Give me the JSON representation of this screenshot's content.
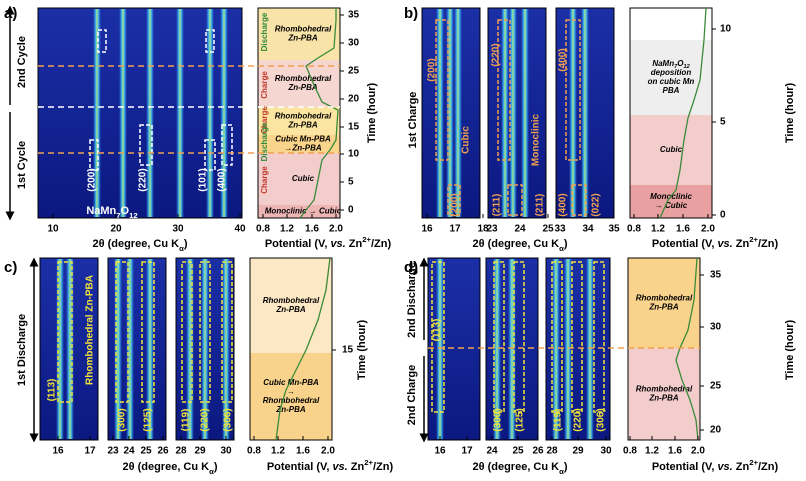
{
  "panel_a": {
    "label": "a)",
    "cycle_labels": [
      "2nd Cycle",
      "1st Cycle"
    ],
    "peak_labels": [
      "(200)",
      "(220)",
      "(101)",
      "(400)"
    ],
    "phase_label": [
      "NaMn",
      "7",
      "O",
      "12"
    ],
    "x_ticks": [
      [
        "10",
        "20",
        "30",
        "40"
      ]
    ],
    "x_title": [
      "2θ (degree, Cu K",
      "α",
      ")"
    ],
    "potential_ticks": [
      "0.8",
      "1.2",
      "1.6",
      "2.0"
    ],
    "potential_title": [
      "Potential (V, ",
      "vs.",
      " Zn",
      "2+",
      "/Zn)"
    ],
    "time_ticks": [
      "0",
      "5",
      "10",
      "15",
      "20",
      "25",
      "30",
      "35"
    ],
    "time_title": "Time (hour)",
    "processes": [
      "Discharge",
      "Charge",
      "Charge",
      "Discharge",
      "Charge"
    ],
    "bands": [
      [
        "Rhombohedral",
        "Zn-PBA"
      ],
      [
        "Rhombohedral",
        "Zn-PBA"
      ],
      [
        "Rhombohedral",
        "Zn-PBA"
      ],
      [
        "Cubic Mn-PBA",
        "→Zn-PBA"
      ],
      [
        "Cubic"
      ],
      [
        "Monoclinic → Cubic"
      ]
    ]
  },
  "panel_b": {
    "label": "b)",
    "cycle_labels": [
      "1st Charge"
    ],
    "peak_labels": [
      "(200)",
      "Cubic",
      "(200)",
      "(220)",
      "Monoclinic",
      "(211)",
      "(211)",
      "(400)",
      "(400)",
      "(022)"
    ],
    "x_ticks": [
      [
        "16",
        "17",
        "18"
      ],
      [
        "23",
        "24",
        "25"
      ],
      [
        "33",
        "34",
        "35"
      ]
    ],
    "x_title": [
      "2θ (degree, Cu K",
      "α",
      ")"
    ],
    "potential_ticks": [
      "0.8",
      "1.2",
      "1.6",
      "2.0"
    ],
    "potential_title": [
      "Potential (V, ",
      "vs.",
      " Zn",
      "2+",
      "/Zn)"
    ],
    "time_ticks": [
      "0",
      "5",
      "10"
    ],
    "time_title": "Time (hour)",
    "bands": [
      [
        [
          "NaMn",
          "7",
          "O",
          "12"
        ],
        "deposition",
        "on cubic Mn",
        "PBA"
      ],
      [
        "Cubic"
      ],
      [
        "Monoclinic",
        "→ Cubic"
      ]
    ]
  },
  "panel_c": {
    "label": "c)",
    "cycle_labels": [
      "1st Discharge"
    ],
    "peak_labels": [
      "(113)",
      "Rhombohedral Zn-PBA",
      "(300)",
      "(125)",
      "(119)",
      "(220)",
      "(306)"
    ],
    "x_ticks": [
      [
        "16",
        "17"
      ],
      [
        "23",
        "24",
        "25",
        "26"
      ],
      [
        "28",
        "29",
        "30"
      ]
    ],
    "x_title": [
      "2θ (degree, Cu K",
      "α",
      ")"
    ],
    "potential_ticks": [
      "0.8",
      "1.2",
      "1.6",
      "2.0"
    ],
    "potential_title": [
      "Potential (V, ",
      "vs.",
      " Zn",
      "2+",
      "/Zn)"
    ],
    "time_ticks": [
      "15"
    ],
    "time_title": "Time (hour)",
    "bands": [
      [
        "Rhombohedral",
        "Zn-PBA"
      ],
      [
        "Cubic Mn-PBA",
        "→",
        "Rhombohedral",
        "Zn-PBA"
      ]
    ]
  },
  "panel_d": {
    "label": "d)",
    "cycle_labels": [
      "2nd Discharge",
      "2nd Charge"
    ],
    "peak_labels": [
      "(113)",
      "(300)",
      "(125)",
      "(119)",
      "(220)",
      "(306)"
    ],
    "x_ticks": [
      [
        "16",
        "17"
      ],
      [
        "24",
        "25",
        "26"
      ],
      [
        "28",
        "29",
        "30"
      ]
    ],
    "x_title": [
      "2θ (degree, Cu K",
      "α",
      ")"
    ],
    "potential_ticks": [
      "0.8",
      "1.2",
      "1.6",
      "2.0"
    ],
    "potential_title": [
      "Potential (V, ",
      "vs.",
      " Zn",
      "2+",
      "/Zn)"
    ],
    "time_ticks": [
      "20",
      "25",
      "30",
      "35"
    ],
    "time_title": "Time (hour)",
    "bands": [
      [
        "Rhombohedral",
        "Zn-PBA"
      ],
      [
        "Rhombohedral",
        "Zn-PBA"
      ]
    ]
  }
}
